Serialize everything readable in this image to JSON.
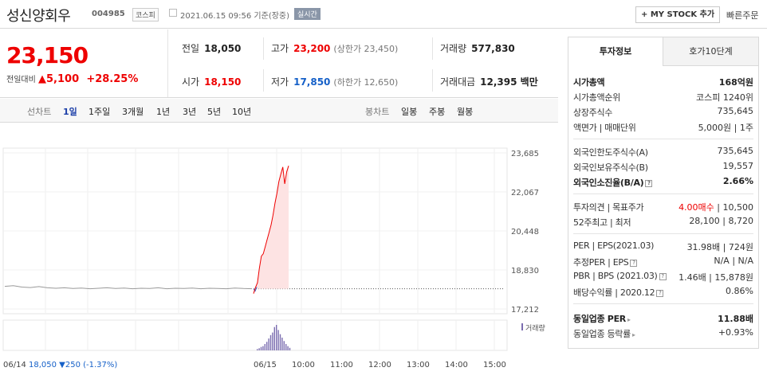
{
  "header": {
    "name": "성신양회우",
    "code": "004985",
    "market": "코스피",
    "as_of": "2021.06.15 09:56  기준(장중)",
    "realtime": "실시간",
    "mystock_label": "+ MY STOCK 추가",
    "quick_order": "빠른주문"
  },
  "price": {
    "current": "23,150",
    "change_label": "전일대비",
    "change": "▲5,100",
    "change_pct": "+28.25%"
  },
  "stats": {
    "prev_close_label": "전일",
    "prev_close": "18,050",
    "high_label": "고가",
    "high": "23,200",
    "upper_limit": "(상한가 23,450)",
    "volume_label": "거래량",
    "volume": "577,830",
    "open_label": "시가",
    "open": "18,150",
    "low_label": "저가",
    "low": "17,850",
    "lower_limit": "(하한가 12,650)",
    "value_label": "거래대금",
    "value": "12,395 백만"
  },
  "periods": {
    "line_label": "선차트",
    "line": [
      "1일",
      "1주일",
      "3개월",
      "1년",
      "3년",
      "5년",
      "10년"
    ],
    "candle_label": "봉차트",
    "candle": [
      "일봉",
      "주봉",
      "월봉"
    ]
  },
  "chart_data": {
    "type": "line",
    "y_ticks": [
      "23,685",
      "22,067",
      "20,448",
      "18,830",
      "17,212"
    ],
    "ylim": [
      17212,
      23685
    ],
    "prev_close": 18050,
    "x_ticks": [
      "06/14",
      "06/15",
      "10:00",
      "11:00",
      "12:00",
      "13:00",
      "14:00",
      "15:00"
    ],
    "legend": "거래량",
    "footer": "06/14  18,050 ▼250 (-1.37%)",
    "prev_day_series": [
      18150,
      18180,
      18120,
      18100,
      18140,
      18090,
      18070,
      18090,
      18060,
      18080,
      18050,
      18070,
      18090,
      18060,
      18080,
      18050,
      18070,
      18060,
      18090,
      18050,
      18070,
      18060,
      18080,
      18050,
      18070,
      18060,
      18050,
      18080,
      18060,
      18050
    ],
    "today_series": [
      17850,
      18100,
      18300,
      18900,
      19400,
      19500,
      19800,
      20100,
      20400,
      20700,
      21100,
      21600,
      22000,
      22500,
      22800,
      23100,
      22400,
      22900,
      23150
    ],
    "volume_series": [
      3,
      5,
      8,
      10,
      15,
      20,
      28,
      36,
      42,
      55,
      60,
      48,
      38,
      30,
      22,
      15,
      10,
      6
    ]
  },
  "invest": {
    "tabs": [
      "투자정보",
      "호가10단계"
    ],
    "market_cap_label": "시가총액",
    "market_cap": "168억원",
    "rank_label": "시가총액순위",
    "rank": "코스피 1240위",
    "shares_label": "상장주식수",
    "shares": "735,645",
    "par_label": "액면가 | 매매단위",
    "par": "5,000원 | 1주",
    "foreign_limit_label": "외국인한도주식수(A)",
    "foreign_limit": "735,645",
    "foreign_hold_label": "외국인보유주식수(B)",
    "foreign_hold": "19,557",
    "foreign_ratio_label": "외국인소진율(B/A)",
    "foreign_ratio": "2.66%",
    "opinion_label": "투자의견 | 목표주가",
    "opinion": "4.00매수",
    "target": "| 10,500",
    "w52_label": "52주최고 | 최저",
    "w52": "28,100 | 8,720",
    "per_label": "PER | EPS(2021.03)",
    "per": "31.98배 | 724원",
    "est_per_label": "추정PER | EPS",
    "est_per": "N/A | N/A",
    "pbr_label": "PBR | BPS (2021.03)",
    "pbr": "1.46배 | 15,878원",
    "div_label": "배당수익률 | 2020.12",
    "div": "0.86%",
    "sector_per_label": "동일업종 PER",
    "sector_per": "11.88배",
    "sector_chg_label": "동일업종 등락률",
    "sector_chg": "+0.93%"
  }
}
